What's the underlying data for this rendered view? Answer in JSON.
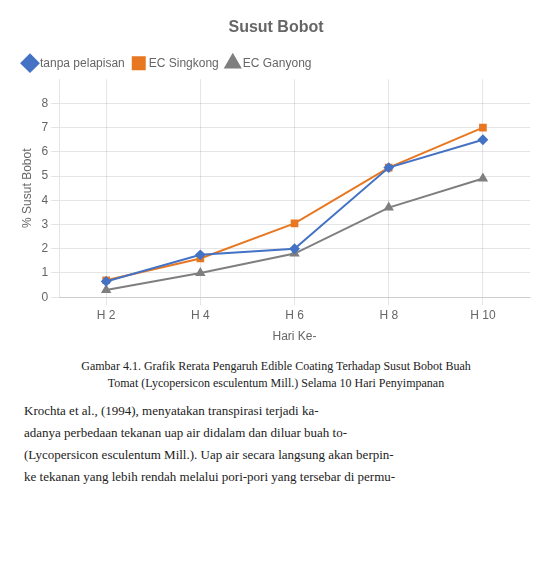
{
  "chart_data": {
    "type": "line",
    "title": "Susut Bobot",
    "x_label": "Hari Ke-",
    "y_label": "% Susut Bobot",
    "x": [
      2,
      4,
      6,
      8,
      10
    ],
    "series": [
      {
        "name": "tanpa pelapisan",
        "color": "#4472C4",
        "marker": "diamond",
        "values": [
          0.65,
          1.75,
          2.0,
          5.35,
          6.5
        ]
      },
      {
        "name": "EC Singkong",
        "color": "#E87722",
        "marker": "square",
        "values": [
          0.7,
          1.6,
          3.05,
          5.35,
          7.0
        ]
      },
      {
        "name": "EC Ganyong",
        "color": "#7F7F7F",
        "marker": "triangle",
        "values": [
          0.3,
          1.0,
          1.8,
          3.7,
          4.9
        ]
      }
    ],
    "xlim": [
      1,
      11
    ],
    "xticks": [
      {
        "value": 2,
        "label": "H 2"
      },
      {
        "value": 4,
        "label": "H 4"
      },
      {
        "value": 6,
        "label": "H 6"
      },
      {
        "value": 8,
        "label": "H 8"
      },
      {
        "value": 10,
        "label": "H 10"
      }
    ],
    "ylim": [
      0,
      9
    ],
    "yticks": [
      0,
      1,
      2,
      3,
      4,
      5,
      6,
      7,
      8
    ],
    "grid": true,
    "legend": "upper left",
    "annotations": [
      "Gambar 4.1. Grafik Rerata Pengaruh Edible Coating Terhadap Susut Bobot Buah",
      "Tomat (Lycopersicon esculentum Mill.) Selama 10 Hari Penyimpanan",
      "Krochta et al., (1994), menyatakan transpirasi terjadi ka-",
      "adanya perbedaan tekanan uap air didalam dan diluar buah to-",
      "(Lycopersicon esculentum Mill.). Uap air secara langsung akan berpin-",
      "ke tekanan yang lebih rendah melalui pori-pori yang tersebar di permu-"
    ]
  }
}
